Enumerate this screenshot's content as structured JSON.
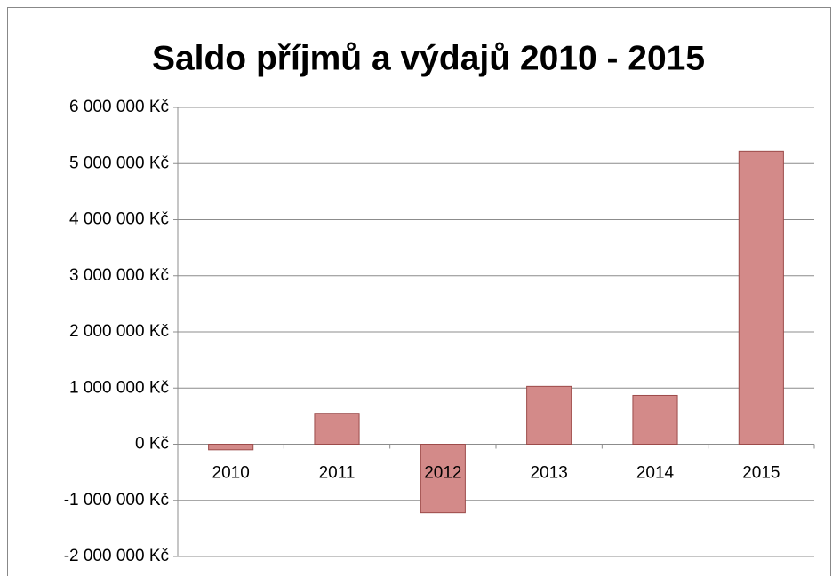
{
  "chart_data": {
    "type": "bar",
    "title": "Saldo příjmů a výdajů 2010 - 2015",
    "categories": [
      "2010",
      "2011",
      "2012",
      "2013",
      "2014",
      "2015"
    ],
    "values": [
      -100000,
      550000,
      -1220000,
      1030000,
      870000,
      5220000
    ],
    "color": "#d38a89",
    "ylim": [
      -2000000,
      6000000
    ],
    "yticks": [
      {
        "value": -2000000,
        "label": "-2 000 000 Kč"
      },
      {
        "value": -1000000,
        "label": "-1 000 000 Kč"
      },
      {
        "value": 0,
        "label": "0 Kč"
      },
      {
        "value": 1000000,
        "label": "1 000 000 Kč"
      },
      {
        "value": 2000000,
        "label": "2 000 000 Kč"
      },
      {
        "value": 3000000,
        "label": "3 000 000 Kč"
      },
      {
        "value": 4000000,
        "label": "4 000 000 Kč"
      },
      {
        "value": 5000000,
        "label": "5 000 000 Kč"
      },
      {
        "value": 6000000,
        "label": "6 000 000 Kč"
      }
    ],
    "grid": true
  }
}
